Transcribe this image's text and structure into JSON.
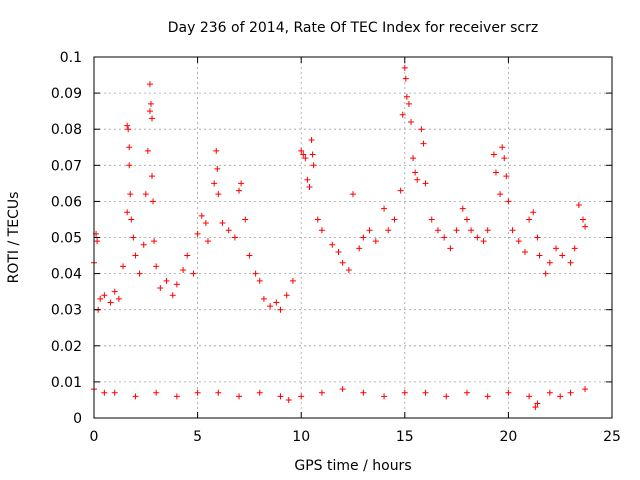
{
  "chart_data": {
    "type": "scatter",
    "title": "Day 236 of 2014, Rate Of TEC Index for receiver scrz",
    "xlabel": "GPS time / hours",
    "ylabel": "ROTI / TECUs",
    "xlim": [
      0,
      25
    ],
    "ylim": [
      0,
      0.1
    ],
    "x_ticks": [
      0,
      5,
      10,
      15,
      20,
      25
    ],
    "x_tick_labels": [
      "0",
      "5",
      "10",
      "15",
      "20",
      "25"
    ],
    "y_ticks": [
      0,
      0.01,
      0.02,
      0.03,
      0.04,
      0.05,
      0.06,
      0.07,
      0.08,
      0.09,
      0.1
    ],
    "y_tick_labels": [
      "0",
      "0.01",
      "0.02",
      "0.03",
      "0.04",
      "0.05",
      "0.06",
      "0.07",
      "0.08",
      "0.09",
      "0.1"
    ],
    "grid": true,
    "marker": "+",
    "series": [
      {
        "name": "ROTI",
        "color": "#ff0000",
        "points": [
          [
            0.0,
            0.043
          ],
          [
            0.1,
            0.051
          ],
          [
            0.15,
            0.049
          ],
          [
            0.2,
            0.03
          ],
          [
            0.3,
            0.033
          ],
          [
            0.5,
            0.034
          ],
          [
            0.8,
            0.032
          ],
          [
            1.0,
            0.035
          ],
          [
            1.2,
            0.033
          ],
          [
            1.4,
            0.042
          ],
          [
            1.6,
            0.057
          ],
          [
            1.6,
            0.081
          ],
          [
            1.65,
            0.08
          ],
          [
            1.7,
            0.075
          ],
          [
            1.7,
            0.07
          ],
          [
            1.75,
            0.062
          ],
          [
            1.8,
            0.055
          ],
          [
            1.9,
            0.05
          ],
          [
            2.0,
            0.045
          ],
          [
            2.2,
            0.04
          ],
          [
            2.4,
            0.048
          ],
          [
            2.5,
            0.062
          ],
          [
            2.6,
            0.074
          ],
          [
            2.7,
            0.085
          ],
          [
            2.7,
            0.0925
          ],
          [
            2.75,
            0.087
          ],
          [
            2.8,
            0.083
          ],
          [
            2.8,
            0.067
          ],
          [
            2.85,
            0.06
          ],
          [
            2.9,
            0.049
          ],
          [
            3.0,
            0.042
          ],
          [
            3.2,
            0.036
          ],
          [
            3.5,
            0.038
          ],
          [
            3.8,
            0.034
          ],
          [
            4.0,
            0.037
          ],
          [
            4.3,
            0.041
          ],
          [
            4.5,
            0.045
          ],
          [
            4.8,
            0.04
          ],
          [
            5.0,
            0.051
          ],
          [
            5.2,
            0.056
          ],
          [
            5.4,
            0.054
          ],
          [
            5.5,
            0.049
          ],
          [
            5.8,
            0.065
          ],
          [
            5.9,
            0.074
          ],
          [
            5.95,
            0.069
          ],
          [
            6.0,
            0.062
          ],
          [
            6.2,
            0.054
          ],
          [
            6.5,
            0.052
          ],
          [
            6.8,
            0.05
          ],
          [
            7.0,
            0.063
          ],
          [
            7.1,
            0.065
          ],
          [
            7.3,
            0.055
          ],
          [
            7.5,
            0.045
          ],
          [
            7.8,
            0.04
          ],
          [
            8.0,
            0.038
          ],
          [
            8.2,
            0.033
          ],
          [
            8.5,
            0.031
          ],
          [
            8.8,
            0.032
          ],
          [
            9.0,
            0.03
          ],
          [
            9.3,
            0.034
          ],
          [
            9.6,
            0.038
          ],
          [
            10.0,
            0.074
          ],
          [
            10.1,
            0.073
          ],
          [
            10.2,
            0.072
          ],
          [
            10.3,
            0.066
          ],
          [
            10.4,
            0.064
          ],
          [
            10.5,
            0.077
          ],
          [
            10.55,
            0.073
          ],
          [
            10.6,
            0.07
          ],
          [
            10.8,
            0.055
          ],
          [
            11.0,
            0.052
          ],
          [
            11.5,
            0.048
          ],
          [
            11.8,
            0.046
          ],
          [
            12.0,
            0.043
          ],
          [
            12.3,
            0.041
          ],
          [
            12.5,
            0.062
          ],
          [
            12.8,
            0.047
          ],
          [
            13.0,
            0.05
          ],
          [
            13.3,
            0.052
          ],
          [
            13.6,
            0.049
          ],
          [
            14.0,
            0.058
          ],
          [
            14.2,
            0.052
          ],
          [
            14.5,
            0.055
          ],
          [
            14.8,
            0.063
          ],
          [
            14.9,
            0.084
          ],
          [
            15.0,
            0.097
          ],
          [
            15.05,
            0.094
          ],
          [
            15.1,
            0.089
          ],
          [
            15.2,
            0.087
          ],
          [
            15.3,
            0.082
          ],
          [
            15.4,
            0.072
          ],
          [
            15.5,
            0.068
          ],
          [
            15.6,
            0.066
          ],
          [
            15.8,
            0.08
          ],
          [
            15.9,
            0.076
          ],
          [
            16.0,
            0.065
          ],
          [
            16.3,
            0.055
          ],
          [
            16.6,
            0.052
          ],
          [
            16.9,
            0.05
          ],
          [
            17.2,
            0.047
          ],
          [
            17.5,
            0.052
          ],
          [
            17.8,
            0.058
          ],
          [
            18.0,
            0.055
          ],
          [
            18.2,
            0.052
          ],
          [
            18.5,
            0.05
          ],
          [
            18.8,
            0.049
          ],
          [
            19.0,
            0.052
          ],
          [
            19.3,
            0.073
          ],
          [
            19.4,
            0.068
          ],
          [
            19.6,
            0.062
          ],
          [
            19.7,
            0.075
          ],
          [
            19.8,
            0.072
          ],
          [
            19.9,
            0.067
          ],
          [
            20.0,
            0.06
          ],
          [
            20.2,
            0.052
          ],
          [
            20.5,
            0.049
          ],
          [
            20.8,
            0.046
          ],
          [
            21.0,
            0.055
          ],
          [
            21.2,
            0.057
          ],
          [
            21.4,
            0.05
          ],
          [
            21.5,
            0.045
          ],
          [
            21.8,
            0.04
          ],
          [
            22.0,
            0.043
          ],
          [
            22.3,
            0.047
          ],
          [
            22.6,
            0.045
          ],
          [
            23.0,
            0.043
          ],
          [
            23.2,
            0.047
          ],
          [
            23.4,
            0.059
          ],
          [
            23.6,
            0.055
          ],
          [
            23.7,
            0.053
          ],
          [
            0.0,
            0.008
          ],
          [
            0.5,
            0.007
          ],
          [
            1.0,
            0.007
          ],
          [
            2.0,
            0.006
          ],
          [
            3.0,
            0.007
          ],
          [
            4.0,
            0.006
          ],
          [
            5.0,
            0.007
          ],
          [
            6.0,
            0.007
          ],
          [
            7.0,
            0.006
          ],
          [
            8.0,
            0.007
          ],
          [
            9.0,
            0.006
          ],
          [
            9.4,
            0.005
          ],
          [
            10.0,
            0.006
          ],
          [
            11.0,
            0.007
          ],
          [
            12.0,
            0.008
          ],
          [
            13.0,
            0.007
          ],
          [
            14.0,
            0.006
          ],
          [
            15.0,
            0.007
          ],
          [
            16.0,
            0.007
          ],
          [
            17.0,
            0.006
          ],
          [
            18.0,
            0.007
          ],
          [
            19.0,
            0.006
          ],
          [
            20.0,
            0.007
          ],
          [
            21.0,
            0.006
          ],
          [
            21.3,
            0.003
          ],
          [
            21.4,
            0.004
          ],
          [
            22.0,
            0.007
          ],
          [
            22.5,
            0.006
          ],
          [
            23.0,
            0.007
          ],
          [
            23.7,
            0.008
          ]
        ]
      }
    ]
  }
}
